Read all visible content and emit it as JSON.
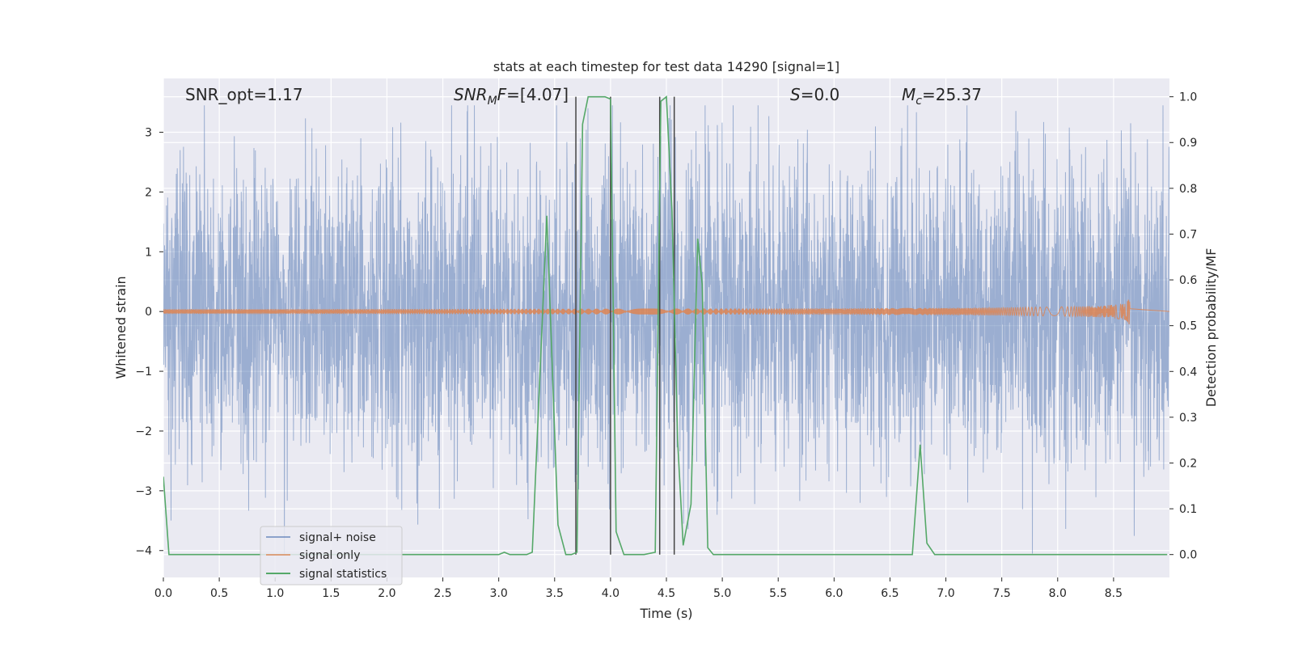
{
  "chart_data": {
    "type": "line",
    "title": "stats at each timestep for test data 14290 [signal=1]",
    "xlabel": "Time (s)",
    "ylabel": "Whitened strain",
    "ylabel_right": "Detection probability/MF",
    "xlim": [
      0,
      9.0
    ],
    "ylim": [
      -4.45,
      3.9
    ],
    "ylim_right": [
      -0.05,
      1.04
    ],
    "x_ticks": [
      0.0,
      0.5,
      1.0,
      1.5,
      2.0,
      2.5,
      3.0,
      3.5,
      4.0,
      4.5,
      5.0,
      5.5,
      6.0,
      6.5,
      7.0,
      7.5,
      8.0,
      8.5
    ],
    "x_tick_labels": [
      "0.0",
      "0.5",
      "1.0",
      "1.5",
      "2.0",
      "2.5",
      "3.0",
      "3.5",
      "4.0",
      "4.5",
      "5.0",
      "5.5",
      "6.0",
      "6.5",
      "7.0",
      "7.5",
      "8.0",
      "8.5"
    ],
    "y_ticks": [
      3,
      2,
      1,
      0,
      -1,
      -2,
      -3,
      -4
    ],
    "y_tick_labels": [
      "3",
      "2",
      "1",
      "0",
      "−1",
      "−2",
      "−3",
      "−4"
    ],
    "y_right_ticks": [
      1.0,
      0.9,
      0.8,
      0.7,
      0.6,
      0.5,
      0.4,
      0.3,
      0.2,
      0.1,
      0.0
    ],
    "y_right_tick_labels": [
      "1.0",
      "0.9",
      "0.8",
      "0.7",
      "0.6",
      "0.5",
      "0.4",
      "0.3",
      "0.2",
      "0.1",
      "0.0"
    ],
    "grid": true,
    "legend_position": "lower-left",
    "annotations": {
      "snr_opt": "SNR_opt=1.17",
      "snr_mf_base": "SNR",
      "snr_mf_sub": "M",
      "snr_mf_tail": "F",
      "snr_mf_value": "=[4.07]",
      "s_label": "S",
      "s_value": "=0.0",
      "mc_base": "M",
      "mc_sub": "c",
      "mc_value": "=25.37"
    },
    "series": [
      {
        "name": "signal+ noise",
        "color": "#4c72b0",
        "axis": "left",
        "style": "dense-noise",
        "noise_std": 1.25,
        "x_range": [
          0,
          9.0
        ]
      },
      {
        "name": "signal only",
        "color": "#dd8452",
        "axis": "left",
        "style": "chirp",
        "chirp_end": 8.65,
        "chirp_peak_amplitude": 0.28
      },
      {
        "name": "signal statistics",
        "color": "#55a868",
        "axis": "right",
        "x": [
          0.0,
          0.05,
          0.1,
          0.15,
          3.0,
          3.05,
          3.1,
          3.15,
          3.25,
          3.3,
          3.43,
          3.53,
          3.6,
          3.65,
          3.7,
          3.75,
          3.8,
          3.85,
          3.9,
          3.95,
          4.0,
          4.05,
          4.12,
          4.2,
          4.3,
          4.4,
          4.45,
          4.5,
          4.55,
          4.6,
          4.65,
          4.72,
          4.78,
          4.82,
          4.87,
          4.92,
          5.0,
          6.5,
          6.7,
          6.77,
          6.83,
          6.9,
          8.98
        ],
        "y": [
          0.17,
          0.0,
          0.0,
          0.0,
          0.0,
          0.005,
          0.0,
          0.0,
          0.0,
          0.005,
          0.74,
          0.065,
          0.0,
          0.0,
          0.005,
          0.94,
          1.0,
          1.0,
          1.0,
          1.0,
          0.995,
          0.05,
          0.0,
          0.0,
          0.0,
          0.005,
          0.99,
          1.0,
          0.75,
          0.25,
          0.02,
          0.11,
          0.69,
          0.59,
          0.015,
          0.0,
          0.0,
          0.0,
          0.0,
          0.24,
          0.025,
          0.0,
          0.0
        ]
      }
    ],
    "vertical_lines": [
      {
        "x": 3.69,
        "y_from": 0.0,
        "y_to": 1.0
      },
      {
        "x": 4.0,
        "y_from": 0.0,
        "y_to": 1.0
      },
      {
        "x": 4.44,
        "y_from": 0.0,
        "y_to": 1.0
      },
      {
        "x": 4.57,
        "y_from": 0.0,
        "y_to": 1.0
      }
    ]
  }
}
